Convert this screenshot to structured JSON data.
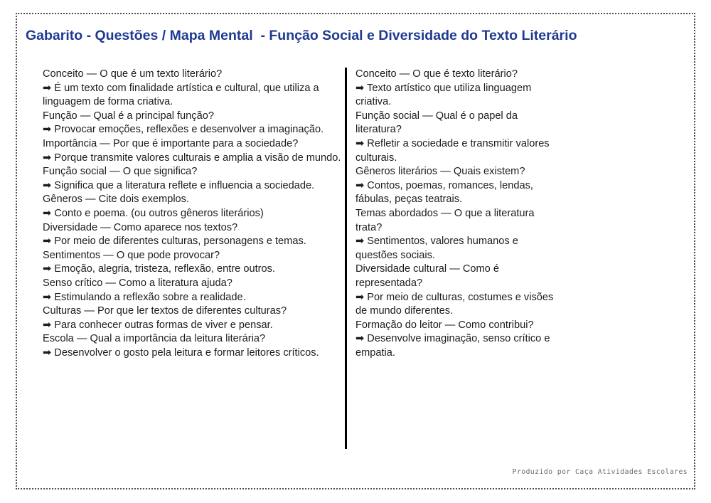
{
  "page": {
    "title": "Gabarito - Questões / Mapa Mental  - Função Social e Diversidade do Texto Literário",
    "title_color": "#1f3a93",
    "arrow": "➡",
    "footer": "Produzido por Caça Atividades Escolares",
    "border_style": "dotted",
    "divider_color": "#000000"
  },
  "left_column": {
    "qa": [
      {
        "q": "Conceito — O que é um texto literário?",
        "a": "É um texto com finalidade artística e cultural, que utiliza a linguagem de forma criativa."
      },
      {
        "q": "Função — Qual é a principal função?",
        "a": "Provocar emoções, reflexões e desenvolver a imaginação."
      },
      {
        "q": "Importância — Por que é importante para a sociedade?",
        "a": "Porque transmite valores culturais e amplia a visão de mundo."
      },
      {
        "q": "Função social — O que significa?",
        "a": "Significa que a literatura reflete e influencia a sociedade."
      },
      {
        "q": "Gêneros — Cite dois exemplos.",
        "a": "Conto e poema. (ou outros gêneros literários)"
      },
      {
        "q": "Diversidade — Como aparece nos textos?",
        "a": "Por meio de diferentes culturas, personagens e temas."
      },
      {
        "q": "Sentimentos — O que pode provocar?",
        "a": "Emoção, alegria, tristeza, reflexão, entre outros."
      },
      {
        "q": "Senso crítico — Como a literatura ajuda?",
        "a": "Estimulando a reflexão sobre a realidade."
      },
      {
        "q": "Culturas — Por que ler textos de diferentes culturas?",
        "a": "Para conhecer outras formas de viver e pensar."
      },
      {
        "q": "Escola — Qual a importância da leitura literária?",
        "a": "Desenvolver o gosto pela leitura e formar leitores críticos."
      }
    ]
  },
  "right_column": {
    "qa": [
      {
        "q": "Conceito — O que é texto literário?",
        "a": "Texto artístico que utiliza linguagem criativa."
      },
      {
        "q": "Função social — Qual é o papel da literatura?",
        "a": "Refletir a sociedade e transmitir valores culturais."
      },
      {
        "q": "Gêneros literários — Quais existem?",
        "a": "Contos, poemas, romances, lendas, fábulas, peças teatrais."
      },
      {
        "q": "Temas abordados — O que a literatura trata?",
        "a": "Sentimentos, valores humanos e questões sociais."
      },
      {
        "q": "Diversidade cultural — Como é representada?",
        "a": "Por meio de culturas, costumes e visões de mundo diferentes."
      },
      {
        "q": "Formação do leitor — Como contribui?",
        "a": "Desenvolve imaginação, senso crítico e empatia."
      }
    ]
  }
}
